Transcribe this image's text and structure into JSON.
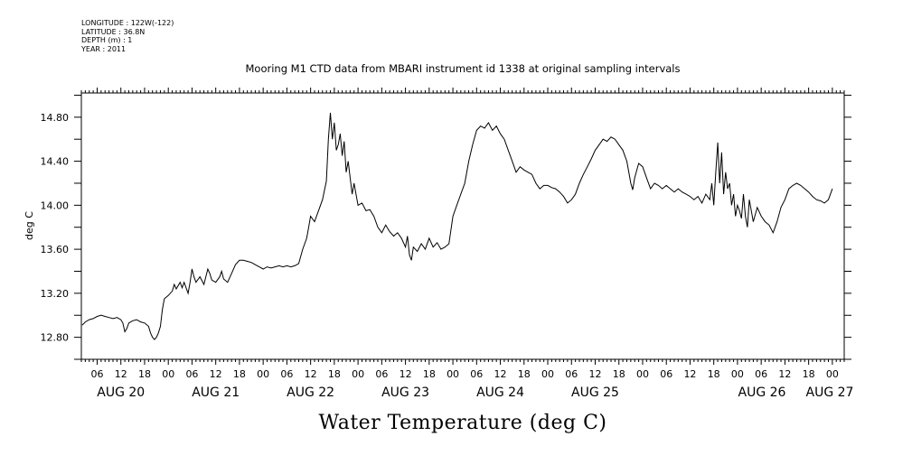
{
  "metadata": {
    "longitude": "LONGITUDE : 122W(-122)",
    "latitude": "LATITUDE : 36.8N",
    "depth": "DEPTH (m) : 1",
    "year": "YEAR : 2011"
  },
  "chart_data": {
    "type": "line",
    "title": "Mooring M1 CTD data from MBARI instrument id 1338 at original sampling intervals",
    "xlabel": "Water Temperature (deg C)",
    "ylabel": "deg C",
    "ylim": [
      12.6,
      15.02
    ],
    "xlim_hours": [
      -22,
      171
    ],
    "y_ticks": [
      "12.80",
      "13.20",
      "13.60",
      "14.00",
      "14.40",
      "14.80"
    ],
    "x_hour_tick_labels": [
      "06",
      "12",
      "18",
      "00",
      "06",
      "12",
      "18",
      "00",
      "06",
      "12",
      "18",
      "00",
      "06",
      "12",
      "18",
      "00",
      "06",
      "12",
      "18",
      "00",
      "06",
      "12",
      "18",
      "00",
      "06",
      "12",
      "18",
      "00",
      "06",
      "12",
      "18",
      "00"
    ],
    "day_labels": [
      "AUG 20",
      "AUG 21",
      "AUG 22",
      "AUG 23",
      "AUG 24",
      "AUG 25",
      "AUG 26",
      "AUG 27"
    ],
    "grid": false,
    "series": [
      {
        "points": [
          [
            -21.8,
            12.91
          ],
          [
            -21,
            12.94
          ],
          [
            -20,
            12.96
          ],
          [
            -19,
            12.97
          ],
          [
            -18,
            12.99
          ],
          [
            -17,
            13.0
          ],
          [
            -16,
            12.99
          ],
          [
            -15,
            12.98
          ],
          [
            -14,
            12.97
          ],
          [
            -13,
            12.98
          ],
          [
            -12,
            12.96
          ],
          [
            -11.5,
            12.93
          ],
          [
            -11,
            12.85
          ],
          [
            -10.5,
            12.88
          ],
          [
            -10,
            12.93
          ],
          [
            -9,
            12.95
          ],
          [
            -8,
            12.96
          ],
          [
            -7,
            12.94
          ],
          [
            -6,
            12.93
          ],
          [
            -5,
            12.9
          ],
          [
            -4.5,
            12.84
          ],
          [
            -4,
            12.8
          ],
          [
            -3.5,
            12.78
          ],
          [
            -3,
            12.8
          ],
          [
            -2.5,
            12.84
          ],
          [
            -2,
            12.9
          ],
          [
            -1.5,
            13.05
          ],
          [
            -1,
            13.15
          ],
          [
            0,
            13.18
          ],
          [
            1,
            13.22
          ],
          [
            1.5,
            13.28
          ],
          [
            2,
            13.24
          ],
          [
            3,
            13.3
          ],
          [
            3.5,
            13.25
          ],
          [
            4,
            13.3
          ],
          [
            5,
            13.2
          ],
          [
            5.5,
            13.3
          ],
          [
            6,
            13.42
          ],
          [
            6.5,
            13.35
          ],
          [
            7,
            13.3
          ],
          [
            8,
            13.35
          ],
          [
            9,
            13.28
          ],
          [
            10,
            13.42
          ],
          [
            10.5,
            13.38
          ],
          [
            11,
            13.32
          ],
          [
            12,
            13.3
          ],
          [
            13,
            13.35
          ],
          [
            13.5,
            13.4
          ],
          [
            14,
            13.33
          ],
          [
            15,
            13.3
          ],
          [
            16,
            13.38
          ],
          [
            17,
            13.46
          ],
          [
            18,
            13.5
          ],
          [
            19,
            13.5
          ],
          [
            20,
            13.49
          ],
          [
            21,
            13.48
          ],
          [
            22,
            13.46
          ],
          [
            23,
            13.44
          ],
          [
            24,
            13.42
          ],
          [
            25,
            13.44
          ],
          [
            26,
            13.43
          ],
          [
            27,
            13.44
          ],
          [
            28,
            13.45
          ],
          [
            29,
            13.44
          ],
          [
            30,
            13.45
          ],
          [
            31,
            13.44
          ],
          [
            32,
            13.45
          ],
          [
            33,
            13.47
          ],
          [
            34,
            13.6
          ],
          [
            35,
            13.7
          ],
          [
            35.5,
            13.8
          ],
          [
            36,
            13.9
          ],
          [
            37,
            13.85
          ],
          [
            38,
            13.95
          ],
          [
            39,
            14.05
          ],
          [
            40,
            14.22
          ],
          [
            40.5,
            14.6
          ],
          [
            41,
            14.84
          ],
          [
            41.5,
            14.6
          ],
          [
            42,
            14.75
          ],
          [
            42.5,
            14.5
          ],
          [
            43,
            14.55
          ],
          [
            43.5,
            14.65
          ],
          [
            44,
            14.45
          ],
          [
            44.5,
            14.58
          ],
          [
            45,
            14.3
          ],
          [
            45.5,
            14.4
          ],
          [
            46,
            14.25
          ],
          [
            46.5,
            14.1
          ],
          [
            47,
            14.2
          ],
          [
            48,
            14.0
          ],
          [
            49,
            14.02
          ],
          [
            50,
            13.95
          ],
          [
            51,
            13.96
          ],
          [
            52,
            13.9
          ],
          [
            53,
            13.8
          ],
          [
            54,
            13.75
          ],
          [
            55,
            13.82
          ],
          [
            56,
            13.76
          ],
          [
            57,
            13.72
          ],
          [
            58,
            13.75
          ],
          [
            59,
            13.7
          ],
          [
            60,
            13.62
          ],
          [
            60.5,
            13.72
          ],
          [
            61,
            13.55
          ],
          [
            61.5,
            13.5
          ],
          [
            62,
            13.62
          ],
          [
            63,
            13.58
          ],
          [
            64,
            13.65
          ],
          [
            65,
            13.6
          ],
          [
            66,
            13.7
          ],
          [
            67,
            13.62
          ],
          [
            68,
            13.66
          ],
          [
            69,
            13.6
          ],
          [
            70,
            13.62
          ],
          [
            71,
            13.65
          ],
          [
            72,
            13.9
          ],
          [
            73,
            14.0
          ],
          [
            74,
            14.1
          ],
          [
            75,
            14.2
          ],
          [
            76,
            14.4
          ],
          [
            77,
            14.55
          ],
          [
            78,
            14.68
          ],
          [
            79,
            14.72
          ],
          [
            80,
            14.7
          ],
          [
            81,
            14.75
          ],
          [
            82,
            14.68
          ],
          [
            83,
            14.72
          ],
          [
            84,
            14.65
          ],
          [
            85,
            14.6
          ],
          [
            86,
            14.5
          ],
          [
            87,
            14.4
          ],
          [
            88,
            14.3
          ],
          [
            89,
            14.35
          ],
          [
            90,
            14.32
          ],
          [
            91,
            14.3
          ],
          [
            92,
            14.28
          ],
          [
            93,
            14.2
          ],
          [
            94,
            14.15
          ],
          [
            95,
            14.18
          ],
          [
            96,
            14.18
          ],
          [
            97,
            14.16
          ],
          [
            98,
            14.15
          ],
          [
            99,
            14.12
          ],
          [
            100,
            14.08
          ],
          [
            101,
            14.02
          ],
          [
            102,
            14.05
          ],
          [
            103,
            14.1
          ],
          [
            104,
            14.2
          ],
          [
            105,
            14.28
          ],
          [
            106,
            14.35
          ],
          [
            107,
            14.42
          ],
          [
            108,
            14.5
          ],
          [
            109,
            14.55
          ],
          [
            110,
            14.6
          ],
          [
            111,
            14.58
          ],
          [
            112,
            14.62
          ],
          [
            113,
            14.6
          ],
          [
            114,
            14.55
          ],
          [
            115,
            14.5
          ],
          [
            116,
            14.4
          ],
          [
            117,
            14.2
          ],
          [
            117.5,
            14.14
          ],
          [
            118,
            14.25
          ],
          [
            119,
            14.38
          ],
          [
            120,
            14.35
          ],
          [
            121,
            14.25
          ],
          [
            122,
            14.15
          ],
          [
            123,
            14.2
          ],
          [
            124,
            14.18
          ],
          [
            125,
            14.15
          ],
          [
            126,
            14.18
          ],
          [
            127,
            14.15
          ],
          [
            128,
            14.12
          ],
          [
            129,
            14.15
          ],
          [
            130,
            14.12
          ],
          [
            131,
            14.1
          ],
          [
            132,
            14.08
          ],
          [
            133,
            14.05
          ],
          [
            134,
            14.08
          ],
          [
            135,
            14.02
          ],
          [
            136,
            14.1
          ],
          [
            137,
            14.05
          ],
          [
            137.5,
            14.2
          ],
          [
            138,
            14.0
          ],
          [
            138.5,
            14.3
          ],
          [
            139,
            14.57
          ],
          [
            139.5,
            14.2
          ],
          [
            140,
            14.48
          ],
          [
            140.5,
            14.1
          ],
          [
            141,
            14.3
          ],
          [
            141.5,
            14.15
          ],
          [
            142,
            14.2
          ],
          [
            142.5,
            14.0
          ],
          [
            143,
            14.1
          ],
          [
            143.5,
            13.9
          ],
          [
            144,
            14.0
          ],
          [
            144.5,
            13.95
          ],
          [
            145,
            13.88
          ],
          [
            145.5,
            14.1
          ],
          [
            146,
            13.9
          ],
          [
            146.5,
            13.8
          ],
          [
            147,
            14.05
          ],
          [
            147.5,
            13.95
          ],
          [
            148,
            13.85
          ],
          [
            149,
            13.98
          ],
          [
            150,
            13.9
          ],
          [
            151,
            13.85
          ],
          [
            152,
            13.82
          ],
          [
            153,
            13.75
          ],
          [
            154,
            13.85
          ],
          [
            155,
            13.98
          ],
          [
            156,
            14.05
          ],
          [
            157,
            14.15
          ],
          [
            158,
            14.18
          ],
          [
            159,
            14.2
          ],
          [
            160,
            14.18
          ],
          [
            161,
            14.15
          ],
          [
            162,
            14.12
          ],
          [
            163,
            14.08
          ],
          [
            164,
            14.05
          ],
          [
            165,
            14.04
          ],
          [
            166,
            14.02
          ],
          [
            167,
            14.05
          ],
          [
            168,
            14.15
          ]
        ]
      }
    ]
  }
}
